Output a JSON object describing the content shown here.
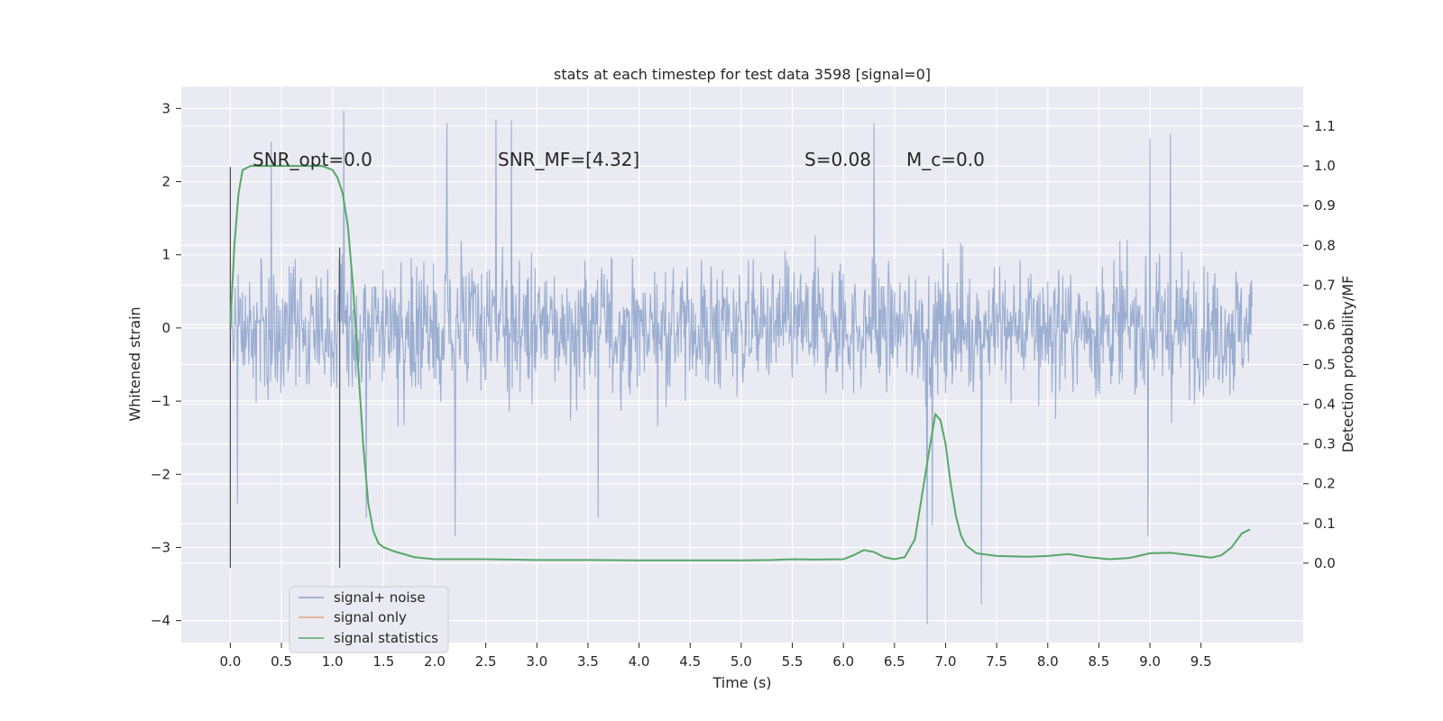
{
  "chart_data": {
    "type": "line",
    "title": "stats at each timestep for test data 3598 [signal=0]",
    "xlabel": "Time (s)",
    "ylabel": "Whitened strain",
    "y2label": "Detection probability/MF",
    "xlim": [
      -0.48,
      10.5
    ],
    "ylim": [
      -4.3,
      3.3
    ],
    "y2lim": [
      -0.2,
      1.2
    ],
    "xticks": [
      0.0,
      0.5,
      1.0,
      1.5,
      2.0,
      2.5,
      3.0,
      3.5,
      4.0,
      4.5,
      5.0,
      5.5,
      6.0,
      6.5,
      7.0,
      7.5,
      8.0,
      8.5,
      9.0,
      9.5
    ],
    "xtick_labels": [
      "0.0",
      "0.5",
      "1.0",
      "1.5",
      "2.0",
      "2.5",
      "3.0",
      "3.5",
      "4.0",
      "4.5",
      "5.0",
      "5.5",
      "6.0",
      "6.5",
      "7.0",
      "7.5",
      "8.0",
      "8.5",
      "9.0",
      "9.5"
    ],
    "yticks": [
      3,
      2,
      1,
      0,
      -1,
      -2,
      -3,
      -4
    ],
    "ytick_labels": [
      "3",
      "2",
      "1",
      "0",
      "−1",
      "−2",
      "−3",
      "−4"
    ],
    "y2ticks": [
      1.1,
      1.0,
      0.9,
      0.8,
      0.7,
      0.6,
      0.5,
      0.4,
      0.3,
      0.2,
      0.1,
      0.0
    ],
    "y2tick_labels": [
      "1.1",
      "1.0",
      "0.9",
      "0.8",
      "0.7",
      "0.6",
      "0.5",
      "0.4",
      "0.3",
      "0.2",
      "0.1",
      "0.0"
    ],
    "grid": true,
    "legend_position": "lower-left",
    "annotations": [
      "SNR_opt=0.0",
      "SNR_MF=[4.32]",
      "S=0.08",
      "M_c=0.0"
    ],
    "vertical_markers": [
      {
        "x": 0.0,
        "y_range": [
          -3.28,
          2.2
        ]
      },
      {
        "x": 1.07,
        "y_range": [
          -3.28,
          1.1
        ]
      }
    ],
    "series": [
      {
        "name": "signal+ noise",
        "color": "#4c72b0",
        "envelope": {
          "x_range": [
            0.0,
            10.0
          ],
          "typical_range": [
            -1.8,
            1.5
          ],
          "max": 2.97,
          "min": -4.05
        },
        "spikes": [
          {
            "x": 1.11,
            "y": 2.97
          },
          {
            "x": 2.12,
            "y": 2.8
          },
          {
            "x": 2.6,
            "y": 2.85
          },
          {
            "x": 2.75,
            "y": 2.84
          },
          {
            "x": 6.3,
            "y": 2.8
          },
          {
            "x": 9.0,
            "y": 2.6
          },
          {
            "x": 9.2,
            "y": 2.65
          },
          {
            "x": 0.4,
            "y": 2.55
          },
          {
            "x": 6.82,
            "y": -4.05
          },
          {
            "x": 7.35,
            "y": -3.78
          },
          {
            "x": 2.2,
            "y": -2.85
          },
          {
            "x": 8.98,
            "y": -2.85
          },
          {
            "x": 1.33,
            "y": -2.6
          },
          {
            "x": 0.07,
            "y": -2.4
          },
          {
            "x": 6.87,
            "y": -2.7
          },
          {
            "x": 3.6,
            "y": -2.6
          }
        ]
      },
      {
        "name": "signal only",
        "color": "#dd8452",
        "x": [],
        "y": []
      },
      {
        "name": "signal statistics",
        "color": "#55a868",
        "axis": "right",
        "x": [
          0.0,
          0.04,
          0.08,
          0.12,
          0.2,
          0.3,
          0.5,
          0.7,
          0.9,
          1.0,
          1.05,
          1.1,
          1.15,
          1.2,
          1.25,
          1.3,
          1.35,
          1.4,
          1.45,
          1.5,
          1.6,
          1.8,
          2.0,
          2.5,
          3.0,
          3.5,
          4.0,
          4.5,
          5.0,
          5.3,
          5.5,
          5.7,
          6.0,
          6.1,
          6.2,
          6.3,
          6.4,
          6.5,
          6.6,
          6.7,
          6.8,
          6.85,
          6.9,
          6.95,
          7.0,
          7.05,
          7.1,
          7.15,
          7.2,
          7.3,
          7.5,
          7.8,
          8.0,
          8.2,
          8.4,
          8.6,
          8.8,
          9.0,
          9.2,
          9.4,
          9.6,
          9.7,
          9.8,
          9.9,
          9.98
        ],
        "y": [
          0.6,
          0.8,
          0.93,
          0.99,
          1.0,
          1.0,
          1.0,
          1.0,
          1.0,
          0.99,
          0.97,
          0.93,
          0.85,
          0.7,
          0.5,
          0.3,
          0.15,
          0.08,
          0.05,
          0.04,
          0.03,
          0.015,
          0.01,
          0.01,
          0.008,
          0.008,
          0.007,
          0.007,
          0.007,
          0.008,
          0.01,
          0.009,
          0.01,
          0.02,
          0.033,
          0.028,
          0.015,
          0.01,
          0.015,
          0.06,
          0.22,
          0.3,
          0.375,
          0.36,
          0.3,
          0.2,
          0.12,
          0.07,
          0.045,
          0.025,
          0.018,
          0.016,
          0.018,
          0.023,
          0.015,
          0.01,
          0.013,
          0.025,
          0.026,
          0.02,
          0.014,
          0.02,
          0.04,
          0.075,
          0.085
        ]
      }
    ]
  }
}
